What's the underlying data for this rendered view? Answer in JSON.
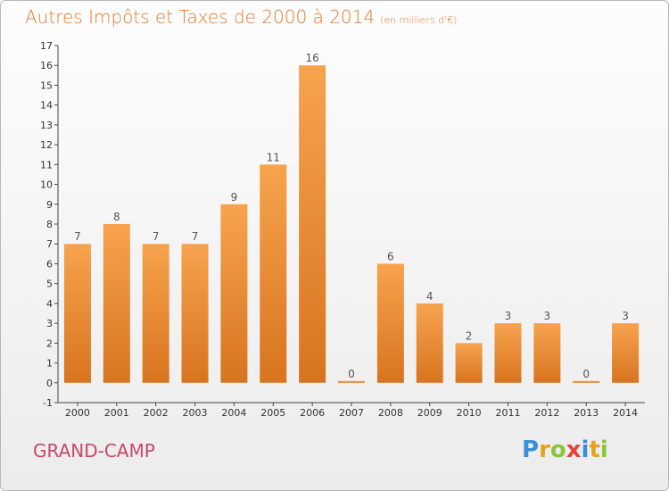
{
  "title": "Autres Impôts et Taxes de 2000 à 2014",
  "subtitle": "(en milliers d'€)",
  "place": "GRAND-CAMP",
  "logo": {
    "letters": [
      "P",
      "r",
      "o",
      "x",
      "i",
      "t",
      "i"
    ],
    "colors": [
      "#3a8fd6",
      "#e9a21f",
      "#8cc43c",
      "#e2433a",
      "#3a8fd6",
      "#e9a21f",
      "#8cc43c"
    ]
  },
  "chart_data": {
    "type": "bar",
    "categories": [
      "2000",
      "2001",
      "2002",
      "2003",
      "2004",
      "2005",
      "2006",
      "2007",
      "2008",
      "2009",
      "2010",
      "2011",
      "2012",
      "2013",
      "2014"
    ],
    "values": [
      7,
      8,
      7,
      7,
      9,
      11,
      16,
      0,
      6,
      4,
      2,
      3,
      3,
      0,
      3
    ],
    "data_labels": [
      "7",
      "8",
      "7",
      "7",
      "9",
      "11",
      "16",
      "0",
      "6",
      "4",
      "2",
      "3",
      "3",
      "0",
      "3"
    ],
    "ylim": [
      -1,
      17
    ],
    "yticks": [
      "-1",
      "0",
      "1",
      "2",
      "3",
      "4",
      "5",
      "6",
      "7",
      "8",
      "9",
      "10",
      "11",
      "12",
      "13",
      "14",
      "15",
      "16",
      "17"
    ],
    "grid": false,
    "bar_color": "#f0913a"
  }
}
